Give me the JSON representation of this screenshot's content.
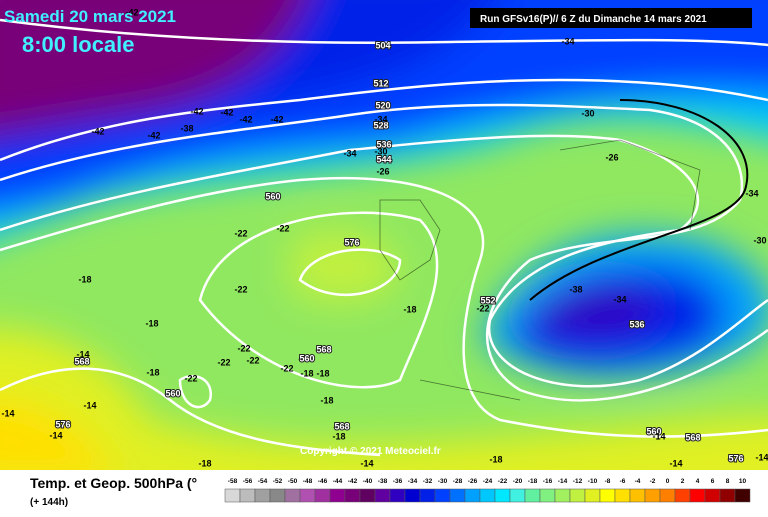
{
  "header": {
    "date": "Samedi 20 mars 2021",
    "time": "8:00 locale",
    "run": "Run GFSv16(P)// 6 Z du Dimanche 14 mars 2021"
  },
  "footer": {
    "title": "Temp. et Geop. 500hPa (°",
    "range": "(+ 144h)",
    "copyright": "Copyright © 2021 Meteociel.fr"
  },
  "scale": {
    "values": [
      -58,
      -56,
      -54,
      -52,
      -50,
      -48,
      -46,
      -44,
      -42,
      -40,
      -38,
      -36,
      -34,
      -32,
      -30,
      -28,
      -26,
      -24,
      -22,
      -20,
      -18,
      -16,
      -14,
      -12,
      -10,
      -8,
      -6,
      -4,
      -2,
      0,
      2,
      4,
      6,
      8,
      10
    ],
    "colors": [
      "#d8d8d8",
      "#bcbcbc",
      "#a0a0a0",
      "#888888",
      "#a070a0",
      "#b050b0",
      "#a030a0",
      "#900090",
      "#780078",
      "#600060",
      "#6000a0",
      "#3000c0",
      "#0000d0",
      "#0020e8",
      "#0040ff",
      "#0070ff",
      "#00a0ff",
      "#00c8ff",
      "#00e8ff",
      "#40f0e0",
      "#60f0a0",
      "#80f080",
      "#a0f060",
      "#c0f040",
      "#e0f020",
      "#ffff00",
      "#ffe000",
      "#ffc000",
      "#ffa000",
      "#ff8000",
      "#ff4000",
      "#ff0000",
      "#d00000",
      "#900000",
      "#400000"
    ]
  },
  "map": {
    "geopotential_labels": [
      "504",
      "512",
      "520",
      "528",
      "536",
      "544",
      "560",
      "576",
      "552",
      "536",
      "560",
      "560",
      "568",
      "568",
      "576",
      "568",
      "560",
      "568",
      "576"
    ],
    "temperature_labels": [
      "-42",
      "-42",
      "-42",
      "-38",
      "-42",
      "-42",
      "-42",
      "-42",
      "-34",
      "-30",
      "-34",
      "-34",
      "-30",
      "-26",
      "-26",
      "-34",
      "-30",
      "-38",
      "-34",
      "-22",
      "-22",
      "-22",
      "-18",
      "-18",
      "-18",
      "-18",
      "-22",
      "-22",
      "-22",
      "-22",
      "-22",
      "-18",
      "-18",
      "-22",
      "-18",
      "-18",
      "-18",
      "-18",
      "-14",
      "-14",
      "-14",
      "-14",
      "-14",
      "-14",
      "-14",
      "-14"
    ]
  }
}
